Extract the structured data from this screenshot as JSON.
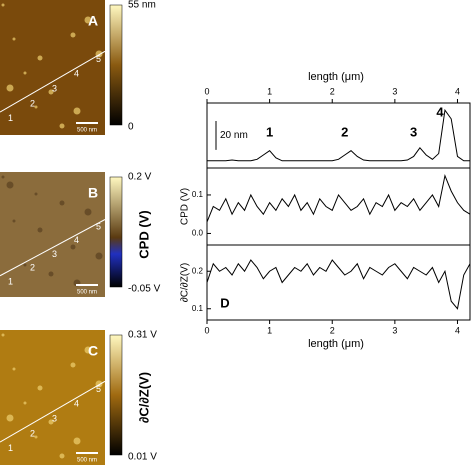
{
  "images": [
    {
      "panel": "A",
      "colorbar_max": "55 nm",
      "colorbar_min": "0",
      "scale": "500 nm",
      "points": [
        "1",
        "2",
        "3",
        "4",
        "5"
      ]
    },
    {
      "panel": "B",
      "colorbar_max": "0.2 V",
      "colorbar_min": "-0.05 V",
      "colorbar_label": "CPD (V)",
      "scale": "500 nm",
      "points": [
        "1",
        "2",
        "3",
        "4",
        "5"
      ]
    },
    {
      "panel": "C",
      "colorbar_max": "0.31 V",
      "colorbar_min": "0.01 V",
      "colorbar_label": "∂C/∂Z(V)",
      "scale": "500 nm",
      "points": [
        "1",
        "2",
        "3",
        "4",
        "5"
      ]
    }
  ],
  "chart_data": [
    {
      "type": "line",
      "xlabel": "length (μm)",
      "xlim": [
        0,
        4.2
      ],
      "xticks": [
        0,
        1,
        2,
        3,
        4
      ],
      "ylim": [
        0,
        45
      ],
      "scale_bar": {
        "value": 20,
        "label": "20 nm"
      },
      "peaks": [
        {
          "label": "1",
          "x": 1.0
        },
        {
          "label": "2",
          "x": 2.2
        },
        {
          "label": "3",
          "x": 3.3
        },
        {
          "label": "4",
          "x": 3.8
        }
      ],
      "x": [
        0,
        0.1,
        0.2,
        0.3,
        0.4,
        0.5,
        0.6,
        0.7,
        0.8,
        0.9,
        1.0,
        1.1,
        1.2,
        1.3,
        1.4,
        1.5,
        1.6,
        1.7,
        1.8,
        1.9,
        2.0,
        2.1,
        2.2,
        2.3,
        2.4,
        2.5,
        2.6,
        2.7,
        2.8,
        2.9,
        3.0,
        3.1,
        3.2,
        3.3,
        3.4,
        3.5,
        3.6,
        3.7,
        3.8,
        3.9,
        4.0,
        4.1,
        4.2
      ],
      "values": [
        5,
        5,
        5,
        5,
        5.5,
        5,
        5,
        5,
        6,
        9,
        12,
        7,
        5,
        5,
        5,
        5,
        5,
        5,
        5,
        5,
        5,
        6,
        9,
        12,
        8,
        5.5,
        5,
        5,
        5,
        5,
        5,
        5,
        5.5,
        8,
        14,
        9,
        6,
        10,
        40,
        34,
        8,
        5,
        5
      ]
    },
    {
      "type": "line",
      "ylabel": "CPD (V)",
      "xlim": [
        0,
        4.2
      ],
      "ylim": [
        -0.03,
        0.17
      ],
      "yticks": [
        {
          "value": 0,
          "label": "0.0"
        },
        0.1
      ],
      "x": [
        0,
        0.1,
        0.2,
        0.3,
        0.4,
        0.5,
        0.6,
        0.7,
        0.8,
        0.9,
        1.0,
        1.1,
        1.2,
        1.3,
        1.4,
        1.5,
        1.6,
        1.7,
        1.8,
        1.9,
        2.0,
        2.1,
        2.2,
        2.3,
        2.4,
        2.5,
        2.6,
        2.7,
        2.8,
        2.9,
        3.0,
        3.1,
        3.2,
        3.3,
        3.4,
        3.5,
        3.6,
        3.7,
        3.8,
        3.9,
        4.0,
        4.1,
        4.2
      ],
      "values": [
        0.03,
        0.07,
        0.06,
        0.09,
        0.05,
        0.08,
        0.06,
        0.1,
        0.07,
        0.05,
        0.08,
        0.06,
        0.09,
        0.07,
        0.1,
        0.06,
        0.08,
        0.05,
        0.09,
        0.07,
        0.06,
        0.1,
        0.08,
        0.06,
        0.07,
        0.09,
        0.05,
        0.08,
        0.07,
        0.1,
        0.06,
        0.08,
        0.07,
        0.09,
        0.06,
        0.08,
        0.1,
        0.07,
        0.15,
        0.11,
        0.08,
        0.06,
        0.05
      ]
    },
    {
      "type": "line",
      "ylabel": "∂C/∂Z(V)",
      "panel": "D",
      "xlabel": "length (μm)",
      "xlim": [
        0,
        4.2
      ],
      "xticks": [
        0,
        1,
        2,
        3,
        4
      ],
      "ylim": [
        0.07,
        0.27
      ],
      "yticks": [
        0.1,
        0.2
      ],
      "x": [
        0,
        0.1,
        0.2,
        0.3,
        0.4,
        0.5,
        0.6,
        0.7,
        0.8,
        0.9,
        1.0,
        1.1,
        1.2,
        1.3,
        1.4,
        1.5,
        1.6,
        1.7,
        1.8,
        1.9,
        2.0,
        2.1,
        2.2,
        2.3,
        2.4,
        2.5,
        2.6,
        2.7,
        2.8,
        2.9,
        3.0,
        3.1,
        3.2,
        3.3,
        3.4,
        3.5,
        3.6,
        3.7,
        3.8,
        3.9,
        4.0,
        4.1,
        4.2
      ],
      "values": [
        0.17,
        0.22,
        0.2,
        0.21,
        0.19,
        0.22,
        0.2,
        0.23,
        0.21,
        0.18,
        0.2,
        0.21,
        0.17,
        0.19,
        0.21,
        0.2,
        0.22,
        0.19,
        0.21,
        0.2,
        0.23,
        0.21,
        0.19,
        0.2,
        0.22,
        0.18,
        0.21,
        0.2,
        0.19,
        0.21,
        0.22,
        0.2,
        0.18,
        0.21,
        0.2,
        0.19,
        0.21,
        0.17,
        0.2,
        0.12,
        0.1,
        0.19,
        0.22
      ]
    }
  ]
}
